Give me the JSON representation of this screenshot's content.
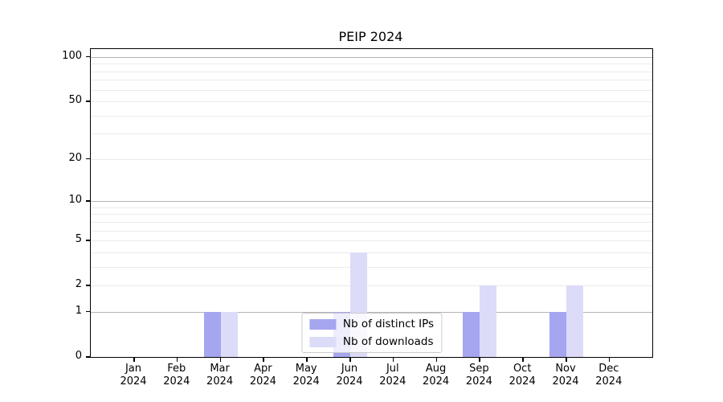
{
  "title": "PEIP 2024",
  "chart_data": {
    "type": "bar",
    "title": "PEIP 2024",
    "categories": [
      "Jan 2024",
      "Feb 2024",
      "Mar 2024",
      "Apr 2024",
      "May 2024",
      "Jun 2024",
      "Jul 2024",
      "Aug 2024",
      "Sep 2024",
      "Oct 2024",
      "Nov 2024",
      "Dec 2024"
    ],
    "series": [
      {
        "name": "Nb of distinct IPs",
        "color": "#a5a5f0",
        "values": [
          0,
          0,
          1,
          0,
          0,
          1,
          0,
          0,
          1,
          0,
          1,
          0
        ]
      },
      {
        "name": "Nb of downloads",
        "color": "#dcdcf8",
        "values": [
          0,
          0,
          1,
          0,
          0,
          4,
          0,
          0,
          2,
          0,
          2,
          0
        ]
      }
    ],
    "y_axis": {
      "scale": "log10(1+x)",
      "tick_labels": [
        "0",
        "1",
        "2",
        "5",
        "10",
        "20",
        "50",
        "100"
      ],
      "tick_values": [
        0,
        1,
        2,
        5,
        10,
        20,
        50,
        100
      ],
      "ylim": [
        0,
        113
      ],
      "grid_major": [
        1,
        10,
        100
      ],
      "grid_minor": [
        2,
        3,
        4,
        5,
        6,
        7,
        8,
        9,
        20,
        30,
        40,
        50,
        60,
        70,
        80,
        90
      ]
    },
    "legend": {
      "position": "lower center",
      "entries": [
        "Nb of distinct IPs",
        "Nb of downloads"
      ]
    }
  },
  "colors": {
    "grid_major": "#b3b3b3",
    "grid_minor": "#ebebeb",
    "spine": "#000000",
    "background": "#ffffff"
  }
}
